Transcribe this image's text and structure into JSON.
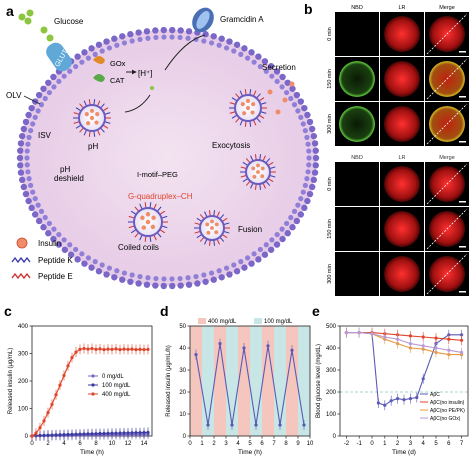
{
  "panel_a": {
    "letter": "a",
    "labels": {
      "glucose": "Glucose",
      "glut": "GLUT2",
      "gramicidin": "Gramcidin A",
      "gox": "GOx",
      "cat": "CAT",
      "hplus": "[H⁺]",
      "secretion": "Secretion",
      "olv": "OLV",
      "isv": "ISV",
      "exocytosis": "Exocytosis",
      "ph_up": "pH",
      "ph_deshield": "pH\ndeshield",
      "imotif": "I-motif–PEG",
      "gquad": "G-quadruplex–CH",
      "fusion": "Fusion",
      "coiled": "Coiled coils"
    },
    "legend": [
      {
        "label": "Insulin"
      },
      {
        "label": "Peptide K"
      },
      {
        "label": "Peptide E"
      }
    ]
  },
  "panel_b": {
    "letter": "b",
    "col_headers": [
      "NBD",
      "LR",
      "Merge"
    ],
    "top_rows": [
      "0 min",
      "150 min",
      "300 min"
    ],
    "bottom_rows": [
      "0 min",
      "150 min",
      "300 min"
    ]
  },
  "panel_c": {
    "letter": "c",
    "chart_data": {
      "type": "line",
      "title": "",
      "xlabel": "Time (h)",
      "ylabel": "Released insulin (μg/mL)",
      "xlim": [
        0,
        15
      ],
      "ylim": [
        0,
        400
      ],
      "xticks": [
        0,
        2,
        4,
        6,
        8,
        10,
        12,
        14
      ],
      "yticks": [
        0,
        100,
        200,
        300,
        400
      ],
      "legend_position": "center-right",
      "series": [
        {
          "name": "0 mg/dL",
          "color": "#7b68c8",
          "x": [
            0,
            0.5,
            1,
            1.5,
            2,
            2.5,
            3,
            3.5,
            4,
            4.5,
            5,
            5.5,
            6,
            6.5,
            7,
            7.5,
            8,
            8.5,
            9,
            9.5,
            10,
            10.5,
            11,
            11.5,
            12,
            12.5,
            13,
            13.5,
            14,
            14.5
          ],
          "y": [
            0,
            0.5,
            1,
            1,
            1.5,
            1.5,
            2,
            2,
            2,
            2.5,
            2.5,
            3,
            3,
            3,
            3.5,
            3.5,
            4,
            4,
            4,
            4.5,
            4.5,
            5,
            5,
            5,
            5.5,
            5.5,
            6,
            6,
            6,
            6.5
          ]
        },
        {
          "name": "100 mg/dL",
          "color": "#3a3aa0",
          "x": [
            0,
            0.5,
            1,
            1.5,
            2,
            2.5,
            3,
            3.5,
            4,
            4.5,
            5,
            5.5,
            6,
            6.5,
            7,
            7.5,
            8,
            8.5,
            9,
            9.5,
            10,
            10.5,
            11,
            11.5,
            12,
            12.5,
            13,
            13.5,
            14,
            14.5
          ],
          "y": [
            0,
            1,
            2,
            2.5,
            3,
            3.5,
            4,
            4.5,
            5,
            5.5,
            6,
            6.5,
            7,
            7.5,
            8,
            8,
            8.5,
            9,
            9,
            9.5,
            10,
            10,
            10.5,
            11,
            11,
            11.5,
            12,
            12,
            12.5,
            13
          ]
        },
        {
          "name": "400 mg/dL",
          "color": "#e0452c",
          "x": [
            0,
            0.5,
            1,
            1.5,
            2,
            2.5,
            3,
            3.5,
            4,
            4.5,
            5,
            5.5,
            6,
            6.5,
            7,
            7.5,
            8,
            8.5,
            9,
            9.5,
            10,
            10.5,
            11,
            11.5,
            12,
            12.5,
            13,
            13.5,
            14,
            14.5
          ],
          "y": [
            0,
            10,
            30,
            55,
            85,
            115,
            150,
            185,
            220,
            255,
            285,
            305,
            315,
            318,
            316,
            318,
            315,
            317,
            314,
            316,
            315,
            317,
            314,
            316,
            315,
            316,
            314,
            315,
            314,
            315
          ]
        }
      ]
    }
  },
  "panel_d": {
    "letter": "d",
    "chart_data": {
      "type": "line",
      "title": "",
      "xlabel": "Time (h)",
      "ylabel": "Released insulin (μg/mL/h)",
      "xlim": [
        0,
        10
      ],
      "ylim": [
        0,
        50
      ],
      "xticks": [
        0,
        1,
        2,
        3,
        4,
        5,
        6,
        7,
        8,
        9,
        10
      ],
      "yticks": [
        0,
        10,
        20,
        30,
        40,
        50
      ],
      "legend_position": "top",
      "bands": [
        {
          "name": "400 mg/dL",
          "color": "#f4c6bd",
          "intervals": [
            [
              0,
              1
            ],
            [
              2,
              3
            ],
            [
              4,
              5
            ],
            [
              6,
              7
            ],
            [
              8,
              9
            ]
          ]
        },
        {
          "name": "100 mg/dL",
          "color": "#c8e6e6",
          "intervals": [
            [
              1,
              2
            ],
            [
              3,
              4
            ],
            [
              5,
              6
            ],
            [
              7,
              8
            ],
            [
              9,
              10
            ]
          ]
        }
      ],
      "series": [
        {
          "name": "",
          "color": "#5b5bb5",
          "x": [
            0.5,
            1.5,
            2.5,
            3.5,
            4.5,
            5.5,
            6.5,
            7.5,
            8.5,
            9.5
          ],
          "y": [
            37,
            5,
            42,
            5,
            40,
            5,
            41,
            5,
            39,
            5
          ]
        }
      ]
    }
  },
  "panel_e": {
    "letter": "e",
    "chart_data": {
      "type": "line",
      "title": "",
      "xlabel": "Time (d)",
      "ylabel": "Blood glucose level (mg/dL)",
      "xlim": [
        -2.5,
        7.5
      ],
      "ylim": [
        0,
        500
      ],
      "xticks": [
        -2,
        -1,
        0,
        1,
        2,
        3,
        4,
        5,
        6,
        7
      ],
      "yticks": [
        0,
        100,
        200,
        300,
        400,
        500
      ],
      "threshold": 200,
      "legend_position": "bottom-right",
      "series": [
        {
          "name": "AβC",
          "color": "#5b5bb5",
          "x": [
            -2,
            -1,
            0,
            0.5,
            1,
            1.5,
            2,
            2.5,
            3,
            3.5,
            4,
            5,
            6,
            7
          ],
          "y": [
            470,
            470,
            465,
            150,
            140,
            160,
            170,
            165,
            170,
            175,
            260,
            420,
            460,
            460
          ]
        },
        {
          "name": "AβC(no insulin)",
          "color": "#e0452c",
          "x": [
            -2,
            -1,
            0,
            1,
            2,
            3,
            4,
            5,
            6,
            7
          ],
          "y": [
            470,
            470,
            470,
            465,
            460,
            455,
            450,
            445,
            440,
            435
          ]
        },
        {
          "name": "AβC(no PE/PK)",
          "color": "#e89a3c",
          "x": [
            -2,
            -1,
            0,
            1,
            2,
            3,
            4,
            5,
            6,
            7
          ],
          "y": [
            470,
            470,
            465,
            440,
            420,
            400,
            395,
            380,
            370,
            370
          ]
        },
        {
          "name": "AβC(no GOx)",
          "color": "#b89ad8",
          "x": [
            -2,
            -1,
            0,
            1,
            2,
            3,
            4,
            5,
            6,
            7
          ],
          "y": [
            470,
            470,
            465,
            450,
            440,
            420,
            410,
            400,
            390,
            380
          ]
        }
      ]
    }
  }
}
